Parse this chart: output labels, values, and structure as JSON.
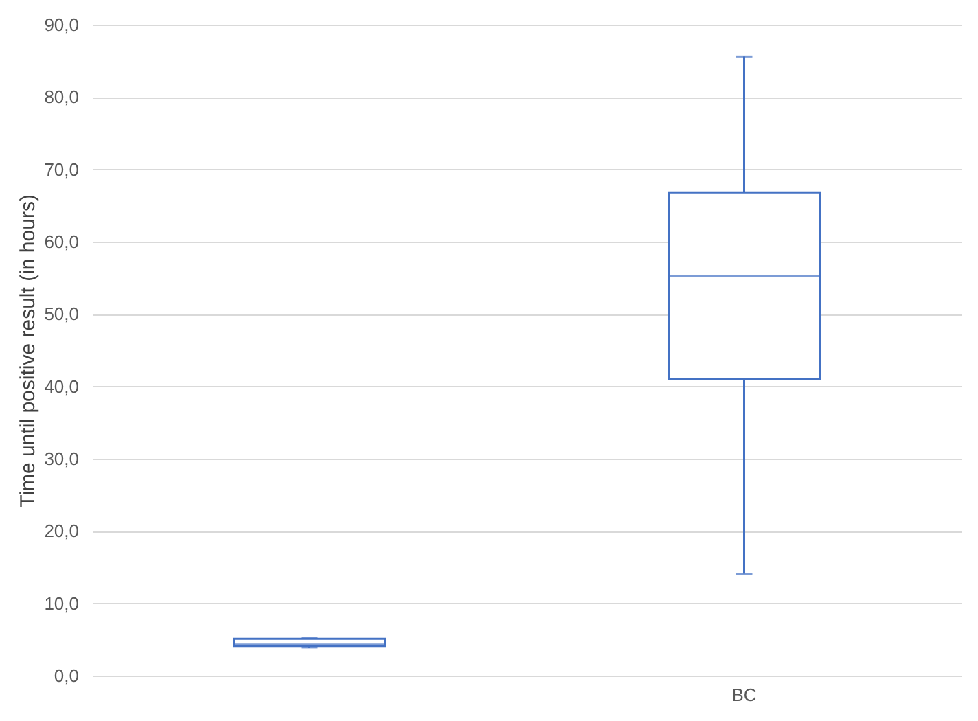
{
  "chart_data": {
    "type": "box",
    "ylabel": "Time until positive result (in hours)",
    "categories": [
      null,
      "BC"
    ],
    "boxes": [
      {
        "low": 3.9,
        "q1": 4.1,
        "median": 4.3,
        "q3": 5.1,
        "high": 5.2
      },
      {
        "low": 14.1,
        "q1": 41.0,
        "median": 55.2,
        "q3": 66.8,
        "high": 85.6
      }
    ],
    "color": "#4472c4",
    "ylim": [
      0,
      90
    ],
    "yticks": [
      {
        "value": 0,
        "label": "0,0"
      },
      {
        "value": 10,
        "label": "10,0"
      },
      {
        "value": 20,
        "label": "20,0"
      },
      {
        "value": 30,
        "label": "30,0"
      },
      {
        "value": 40,
        "label": "40,0"
      },
      {
        "value": 50,
        "label": "50,0"
      },
      {
        "value": 60,
        "label": "60,0"
      },
      {
        "value": 70,
        "label": "70,0"
      },
      {
        "value": 80,
        "label": "80,0"
      },
      {
        "value": 90,
        "label": "90,0"
      }
    ],
    "grid": "y"
  }
}
